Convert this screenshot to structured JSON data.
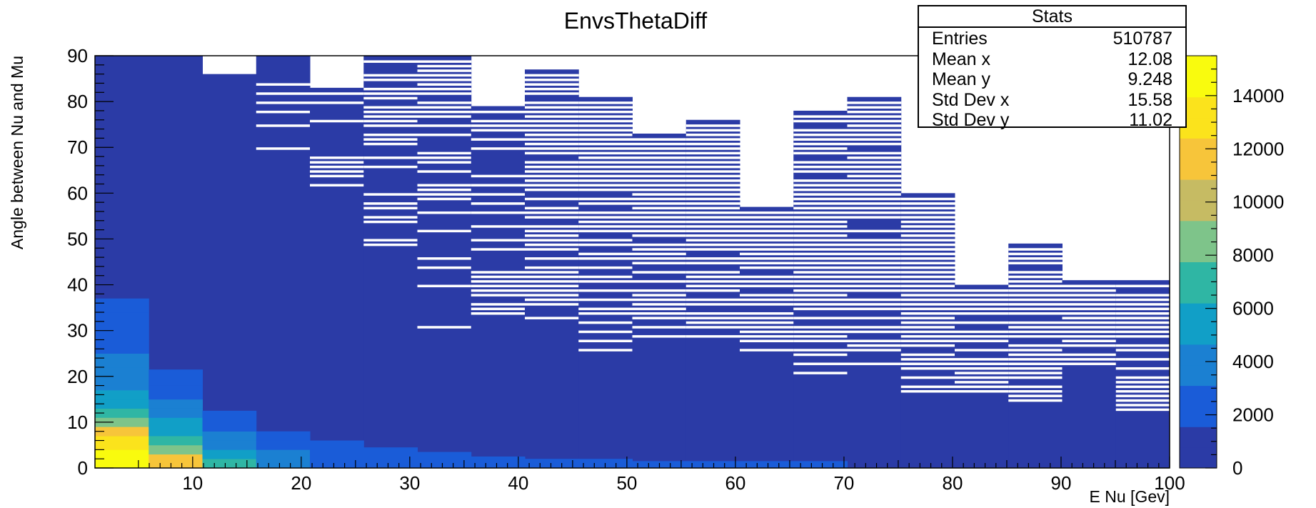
{
  "chart_data": {
    "type": "heatmap",
    "title": "EnvsThetaDiff",
    "xlabel": "E Nu [Gev]",
    "ylabel": "Angle between Nu and Mu",
    "xlim": [
      1,
      100
    ],
    "ylim": [
      0,
      90
    ],
    "x_ticks": [
      10,
      20,
      30,
      40,
      50,
      60,
      70,
      80,
      90,
      100
    ],
    "y_ticks": [
      0,
      10,
      20,
      30,
      40,
      50,
      60,
      70,
      80,
      90
    ],
    "x_bin_width": 4.95,
    "y_bin_width": 1,
    "z_range": [
      0,
      15500
    ],
    "z_ticks": [
      0,
      2000,
      4000,
      6000,
      8000,
      10000,
      12000,
      14000
    ],
    "colormap": [
      "#2b3ba6",
      "#1a5cd8",
      "#1b80d2",
      "#119fc7",
      "#2fb6a4",
      "#7ec48a",
      "#c6bb63",
      "#f7c53a",
      "#fbe31c",
      "#f9fb0e"
    ],
    "column_fill": [
      {
        "x_bin": 1,
        "ymax": 90,
        "holes": []
      },
      {
        "x_bin": 2,
        "ymax": 90,
        "holes": []
      },
      {
        "x_bin": 3,
        "ymax": 86,
        "holes": []
      },
      {
        "x_bin": 4,
        "ymax": 90,
        "holes": [
          69.5,
          74.5,
          77.5,
          79.5,
          81.5,
          83.5
        ]
      },
      {
        "x_bin": 5,
        "ymax": 83,
        "holes": [
          61.5,
          63.5,
          64.5,
          65.5,
          66.5,
          67.5,
          75.5,
          79.5,
          81.5
        ]
      },
      {
        "x_bin": 6,
        "ymax": 90,
        "holes": [
          48.5,
          49.5,
          53.5,
          54.5,
          56.5,
          57.5,
          59.5,
          65.5,
          67.5,
          70.5,
          71.5,
          72.5,
          74.5,
          75.5,
          76.5,
          77.5,
          78.5,
          80.5,
          81.5,
          82.5,
          84.5,
          85.5,
          88.5
        ]
      },
      {
        "x_bin": 7,
        "ymax": 90,
        "holes": [
          30.5,
          39.5,
          43.5,
          45.5,
          51.5,
          55.5,
          58.5,
          59.5,
          60.5,
          61.5,
          64.5,
          66.5,
          67.5,
          68.5,
          72.5,
          74.5,
          76.5,
          77.5,
          78.5,
          79.5,
          81.5,
          82.5,
          83.5,
          84.5,
          85.5,
          86.5,
          87.5,
          88.5
        ]
      },
      {
        "x_bin": 8,
        "ymax": 79,
        "holes": [
          33.5,
          34.5,
          35.5,
          37.5,
          38.5,
          39.5,
          40.5,
          41.5,
          42.5,
          47.5,
          49.5,
          52.5,
          55.5,
          57.5,
          59.5,
          61.5,
          63.5,
          69.5,
          71.5,
          73.5,
          74.5,
          75.5,
          77.5
        ]
      },
      {
        "x_bin": 9,
        "ymax": 87,
        "holes": [
          32.5,
          35.5,
          36.5,
          37.5,
          38.5,
          39.5,
          40.5,
          41.5,
          42.5,
          43.5,
          45.5,
          47.5,
          48.5,
          49.5,
          50.5,
          51.5,
          52.5,
          54.5,
          55.5,
          56.5,
          58.5,
          60.5,
          61.5,
          62.5,
          63.5,
          64.5,
          65.5,
          66.5,
          68.5,
          69.5,
          70.5,
          71.5,
          72.5,
          73.5,
          74.5,
          75.5,
          76.5,
          77.5,
          78.5,
          79.5,
          81.5,
          82.5,
          83.5,
          84.5,
          85.5
        ]
      },
      {
        "x_bin": 10,
        "ymax": 81,
        "holes": [
          25.5,
          27.5,
          29.5,
          31.5,
          33.5,
          34.5,
          36.5,
          38.5,
          40.5,
          41.5,
          43.5,
          45.5,
          46.5,
          48.5,
          49.5,
          51.5,
          52.5,
          53.5,
          54.5,
          55.5,
          57.5,
          58.5,
          60.5,
          61.5,
          62.5,
          63.5,
          64.5,
          65.5,
          66.5,
          67.5,
          68.5,
          69.5,
          70.5,
          71.5,
          72.5,
          73.5,
          74.5,
          75.5,
          76.5,
          77.5,
          78.5,
          79.5
        ]
      },
      {
        "x_bin": 11,
        "ymax": 73,
        "holes": [
          28.5,
          30.5,
          32.5,
          33.5,
          34.5,
          35.5,
          36.5,
          37.5,
          38.5,
          40.5,
          42.5,
          44.5,
          45.5,
          46.5,
          47.5,
          48.5,
          50.5,
          51.5,
          52.5,
          53.5,
          54.5,
          55.5,
          56.5,
          57.5,
          58.5,
          59.5,
          60.5,
          61.5,
          62.5,
          63.5,
          64.5,
          65.5,
          66.5,
          67.5,
          68.5,
          69.5,
          70.5,
          71.5
        ]
      },
      {
        "x_bin": 12,
        "ymax": 76,
        "holes": [
          28.5,
          30.5,
          31.5,
          32.5,
          33.5,
          35.5,
          36.5,
          38.5,
          39.5,
          40.5,
          41.5,
          42.5,
          44.5,
          45.5,
          47.5,
          48.5,
          49.5,
          50.5,
          51.5,
          52.5,
          53.5,
          54.5,
          55.5,
          56.5,
          57.5,
          58.5,
          59.5,
          60.5,
          61.5,
          62.5,
          63.5,
          64.5,
          65.5,
          66.5,
          67.5,
          68.5,
          69.5,
          70.5,
          71.5,
          72.5,
          73.5,
          74.5
        ]
      },
      {
        "x_bin": 13,
        "ymax": 57,
        "holes": [
          25.5,
          27.5,
          28.5,
          29.5,
          30.5,
          31.5,
          32.5,
          33.5,
          35.5,
          36.5,
          37.5,
          39.5,
          40.5,
          41.5,
          43.5,
          44.5,
          45.5,
          46.5,
          47.5,
          48.5,
          49.5,
          50.5,
          51.5,
          52.5,
          53.5,
          54.5,
          55.5
        ]
      },
      {
        "x_bin": 14,
        "ymax": 78,
        "holes": [
          20.5,
          22.5,
          24.5,
          25.5,
          27.5,
          28.5,
          29.5,
          30.5,
          32.5,
          34.5,
          35.5,
          36.5,
          37.5,
          38.5,
          39.5,
          40.5,
          41.5,
          42.5,
          43.5,
          44.5,
          45.5,
          46.5,
          47.5,
          48.5,
          49.5,
          50.5,
          51.5,
          52.5,
          53.5,
          54.5,
          55.5,
          56.5,
          57.5,
          58.5,
          59.5,
          60.5,
          61.5,
          62.5,
          64.5,
          65.5,
          66.5,
          68.5,
          69.5,
          70.5,
          71.5,
          72.5,
          73.5,
          75.5,
          76.5
        ]
      },
      {
        "x_bin": 15,
        "ymax": 81,
        "holes": [
          22.5,
          25.5,
          26.5,
          27.5,
          29.5,
          30.5,
          32.5,
          34.5,
          35.5,
          36.5,
          38.5,
          39.5,
          40.5,
          41.5,
          42.5,
          43.5,
          44.5,
          45.5,
          46.5,
          47.5,
          48.5,
          49.5,
          51.5,
          54.5,
          55.5,
          56.5,
          57.5,
          58.5,
          59.5,
          60.5,
          61.5,
          62.5,
          63.5,
          64.5,
          65.5,
          66.5,
          67.5,
          68.5,
          70.5,
          71.5,
          72.5,
          73.5,
          74.5,
          75.5,
          76.5,
          77.5,
          78.5,
          79.5
        ]
      },
      {
        "x_bin": 16,
        "ymax": 60,
        "holes": [
          16.5,
          17.5,
          19.5,
          21.5,
          22.5,
          23.5,
          24.5,
          26.5,
          27.5,
          28.5,
          29.5,
          30.5,
          31.5,
          32.5,
          33.5,
          34.5,
          35.5,
          36.5,
          37.5,
          38.5,
          39.5,
          40.5,
          41.5,
          42.5,
          43.5,
          44.5,
          45.5,
          46.5,
          47.5,
          48.5,
          49.5,
          50.5,
          51.5,
          52.5,
          53.5,
          54.5,
          55.5,
          56.5,
          57.5,
          58.5
        ]
      },
      {
        "x_bin": 17,
        "ymax": 40,
        "holes": [
          16.5,
          17.5,
          18.5,
          19.5,
          20.5,
          21.5,
          22.5,
          23.5,
          25.5,
          27.5,
          28.5,
          29.5,
          31.5,
          33.5,
          34.5,
          35.5,
          36.5,
          37.5,
          38.5
        ]
      },
      {
        "x_bin": 18,
        "ymax": 49,
        "holes": [
          14.5,
          15.5,
          16.5,
          17.5,
          19.5,
          20.5,
          21.5,
          22.5,
          23.5,
          24.5,
          25.5,
          26.5,
          28.5,
          29.5,
          30.5,
          31.5,
          33.5,
          34.5,
          35.5,
          36.5,
          37.5,
          38.5,
          39.5,
          40.5,
          41.5,
          42.5,
          44.5,
          45.5,
          46.5,
          47.5
        ]
      },
      {
        "x_bin": 19,
        "ymax": 41,
        "holes": [
          22.5,
          23.5,
          24.5,
          26.5,
          27.5,
          28.5,
          29.5,
          30.5,
          31.5,
          32.5,
          33.5,
          34.5,
          35.5,
          36.5,
          37.5,
          38.5,
          39.5
        ]
      },
      {
        "x_bin": 20,
        "ymax": 41,
        "holes": [
          12.5,
          13.5,
          14.5,
          15.5,
          16.5,
          17.5,
          18.5,
          19.5,
          21.5,
          23.5,
          25.5,
          26.5,
          28.5,
          29.5,
          30.5,
          31.5,
          32.5,
          33.5,
          34.5,
          35.5,
          36.5,
          37.5,
          39.5
        ]
      }
    ],
    "low_angle_tail": [
      {
        "x_bin": 6,
        "ymax": 4.5
      },
      {
        "x_bin": 7,
        "ymax": 3.5
      },
      {
        "x_bin": 8,
        "ymax": 2.5
      },
      {
        "x_bin": 9,
        "ymax": 2
      },
      {
        "x_bin": 10,
        "ymax": 2
      },
      {
        "x_bin": 11,
        "ymax": 1.5
      },
      {
        "x_bin": 12,
        "ymax": 1.5
      },
      {
        "x_bin": 13,
        "ymax": 1.5
      },
      {
        "x_bin": 14,
        "ymax": 1.5
      }
    ],
    "hot_columns": [
      {
        "x_bin": 1,
        "segments": [
          [
            0,
            4,
            15200
          ],
          [
            4,
            7,
            13500
          ],
          [
            7,
            9,
            11500
          ],
          [
            9,
            11,
            9000
          ],
          [
            11,
            13,
            7000
          ],
          [
            13,
            15,
            6000
          ],
          [
            15,
            17,
            5200
          ],
          [
            17,
            20,
            4400
          ],
          [
            20,
            22,
            3800
          ],
          [
            22,
            25,
            3200
          ],
          [
            25,
            28,
            2800
          ],
          [
            28,
            31,
            2300
          ],
          [
            31,
            34,
            2000
          ],
          [
            34,
            37,
            1700
          ]
        ]
      },
      {
        "x_bin": 2,
        "segments": [
          [
            0,
            3,
            11000
          ],
          [
            3,
            5,
            9000
          ],
          [
            5,
            7,
            7000
          ],
          [
            7,
            9,
            5600
          ],
          [
            9,
            11,
            4700
          ],
          [
            11,
            13,
            3900
          ],
          [
            13,
            15,
            3300
          ],
          [
            15,
            18,
            2700
          ],
          [
            18,
            21.5,
            2100
          ]
        ]
      },
      {
        "x_bin": 3,
        "segments": [
          [
            0,
            2,
            7000
          ],
          [
            2,
            4,
            5400
          ],
          [
            4,
            6,
            4200
          ],
          [
            6,
            8,
            3400
          ],
          [
            8,
            10,
            2700
          ],
          [
            10,
            12.5,
            2100
          ]
        ]
      },
      {
        "x_bin": 4,
        "segments": [
          [
            0,
            2,
            3800
          ],
          [
            2,
            4,
            3100
          ],
          [
            4,
            6,
            2500
          ],
          [
            6,
            8,
            2000
          ]
        ]
      },
      {
        "x_bin": 5,
        "segments": [
          [
            0,
            2,
            2800
          ],
          [
            2,
            4,
            2300
          ],
          [
            4,
            6,
            1900
          ]
        ]
      }
    ]
  },
  "stats": {
    "title": "Stats",
    "rows": [
      {
        "label": "Entries",
        "value": "510787"
      },
      {
        "label": "Mean x",
        "value": "12.08"
      },
      {
        "label": "Mean y",
        "value": "9.248"
      },
      {
        "label": "Std Dev x",
        "value": "15.58"
      },
      {
        "label": "Std Dev y",
        "value": "11.02"
      }
    ]
  }
}
